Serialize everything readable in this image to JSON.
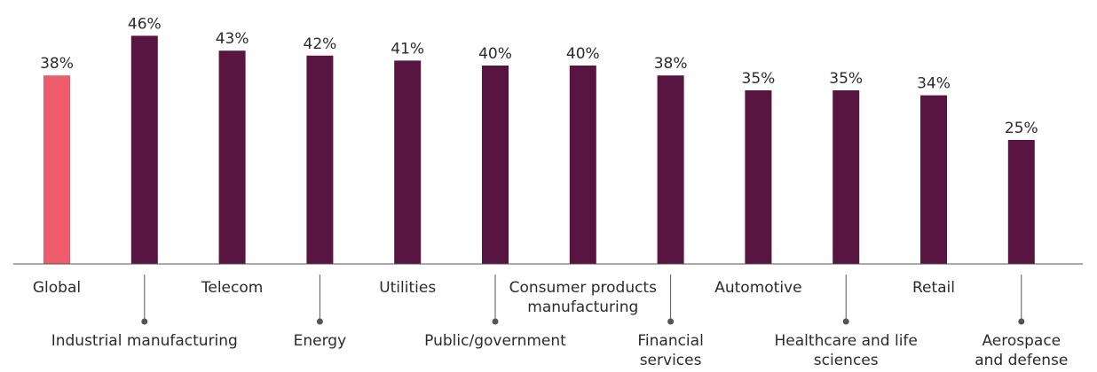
{
  "chart_data": {
    "type": "bar",
    "categories": [
      "Global",
      "Industrial manufacturing",
      "Telecom",
      "Energy",
      "Utilities",
      "Public/government",
      "Consumer products manufacturing",
      "Financial services",
      "Automotive",
      "Healthcare and life sciences",
      "Retail",
      "Aerospace and defense"
    ],
    "values": [
      38,
      46,
      43,
      42,
      41,
      40,
      40,
      38,
      35,
      35,
      34,
      25
    ],
    "value_labels": [
      "38%",
      "46%",
      "43%",
      "42%",
      "41%",
      "40%",
      "40%",
      "38%",
      "35%",
      "35%",
      "34%",
      "25%"
    ],
    "label_lines": [
      [
        "Global"
      ],
      [
        "Industrial manufacturing"
      ],
      [
        "Telecom"
      ],
      [
        "Energy"
      ],
      [
        "Utilities"
      ],
      [
        "Public/government"
      ],
      [
        "Consumer products",
        "manufacturing"
      ],
      [
        "Financial",
        "services"
      ],
      [
        "Automotive"
      ],
      [
        "Healthcare and life",
        "sciences"
      ],
      [
        "Retail"
      ],
      [
        "Aerospace",
        "and defense"
      ]
    ],
    "label_position": [
      "top",
      "bottom",
      "top",
      "bottom",
      "top",
      "bottom",
      "top",
      "bottom",
      "top",
      "bottom",
      "top",
      "bottom"
    ],
    "highlight_index": 0,
    "colors": {
      "highlight": "#EE5C6B",
      "bar": "#591541",
      "axis": "#555555",
      "leader": "#555555",
      "text": "#2b2b2b"
    },
    "ylim": [
      0,
      50
    ],
    "title": "",
    "xlabel": "",
    "ylabel": ""
  }
}
